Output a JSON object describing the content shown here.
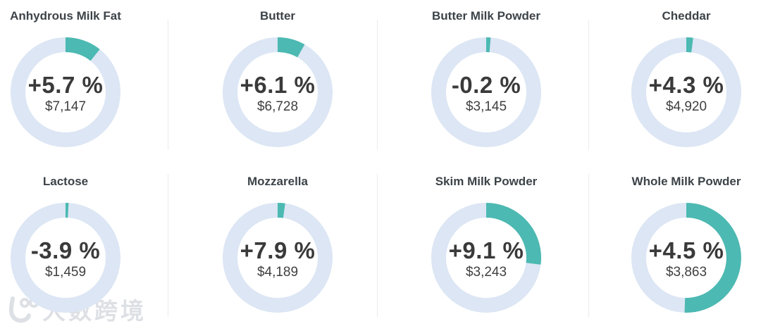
{
  "page": {
    "background": "#ffffff",
    "divider_color": "#ececec"
  },
  "watermark": {
    "logo": "100-smiley-logo",
    "text": "大数跨境"
  },
  "chart_data": {
    "type": "donut",
    "layout": "4x2 grid of donut KPI gauges",
    "title": "",
    "legend": "none",
    "colors": {
      "arc": "#4cb9b2",
      "track": "#dce6f4",
      "percent_text": "#3a3a3a",
      "value_text": "#3f3f3f",
      "title_text": "#3c4348"
    },
    "cards": [
      {
        "title": "Anhydrous Milk Fat",
        "change_label": "+5.7 %",
        "change_pct": 5.7,
        "value_label": "$7,147",
        "value": 7147,
        "ring_fraction": 0.107
      },
      {
        "title": "Butter",
        "change_label": "+6.1 %",
        "change_pct": 6.1,
        "value_label": "$6,728",
        "value": 6728,
        "ring_fraction": 0.082
      },
      {
        "title": "Butter Milk Powder",
        "change_label": "-0.2 %",
        "change_pct": -0.2,
        "value_label": "$3,145",
        "value": 3145,
        "ring_fraction": 0.013
      },
      {
        "title": "Cheddar",
        "change_label": "+4.3 %",
        "change_pct": 4.3,
        "value_label": "$4,920",
        "value": 4920,
        "ring_fraction": 0.02
      },
      {
        "title": "Lactose",
        "change_label": "-3.9 %",
        "change_pct": -3.9,
        "value_label": "$1,459",
        "value": 1459,
        "ring_fraction": 0.009
      },
      {
        "title": "Mozzarella",
        "change_label": "+7.9 %",
        "change_pct": 7.9,
        "value_label": "$4,189",
        "value": 4189,
        "ring_fraction": 0.022
      },
      {
        "title": "Skim Milk Powder",
        "change_label": "+9.1 %",
        "change_pct": 9.1,
        "value_label": "$3,243",
        "value": 3243,
        "ring_fraction": 0.27
      },
      {
        "title": "Whole Milk Powder",
        "change_label": "+4.5 %",
        "change_pct": 4.5,
        "value_label": "$3,863",
        "value": 3863,
        "ring_fraction": 0.505
      }
    ]
  }
}
